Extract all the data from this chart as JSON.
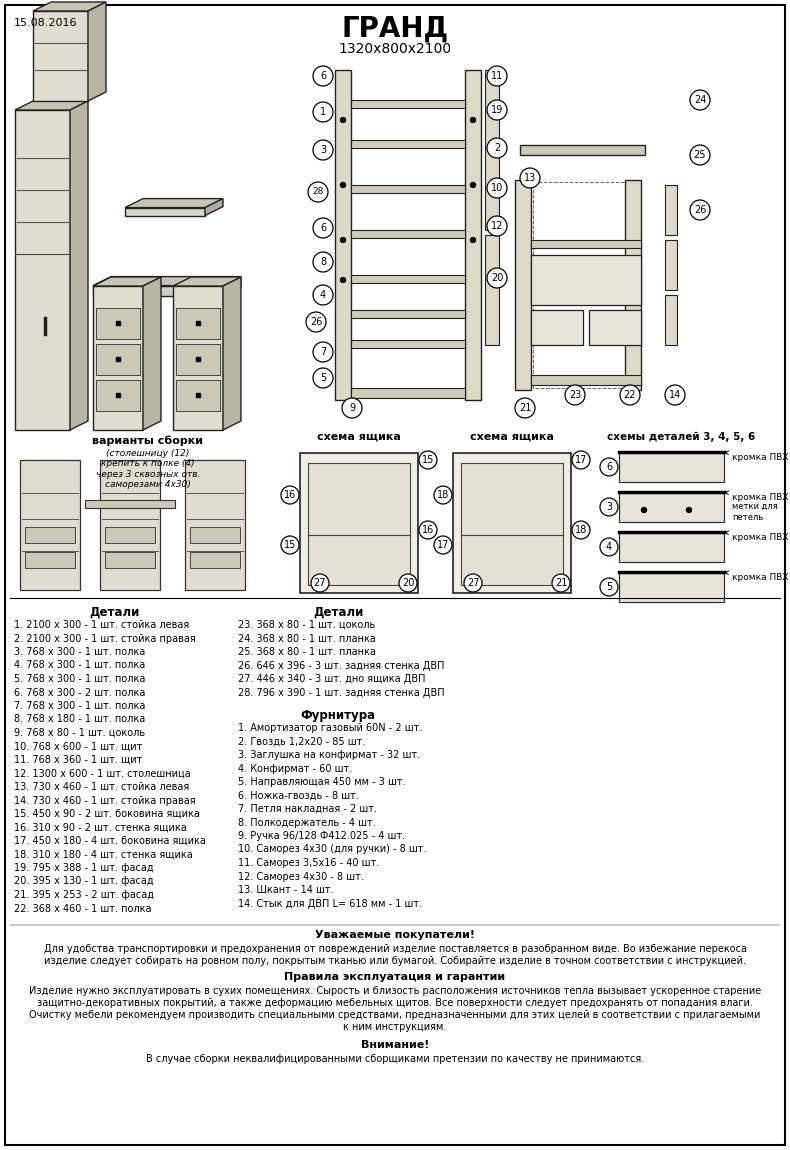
{
  "date": "15.08.2016",
  "title": "ГРАНД",
  "dimensions": "1320x800x2100",
  "bg_color": "#ffffff",
  "details_col1_header": "Детали",
  "details_col1": [
    "1. 2100 х 300 - 1 шт. стойка левая",
    "2. 2100 х 300 - 1 шт. стойка правая",
    "3. 768 х 300 - 1 шт. полка",
    "4. 768 х 300 - 1 шт. полка",
    "5. 768 х 300 - 1 шт. полка",
    "6. 768 х 300 - 2 шт. полка",
    "7. 768 х 300 - 1 шт. полка",
    "8. 768 х 180 - 1 шт. полка",
    "9. 768 х 80 - 1 шт. цоколь",
    "10. 768 х 600 - 1 шт. щит",
    "11. 768 х 360 - 1 шт. щит",
    "12. 1300 х 600 - 1 шт. столешница",
    "13. 730 х 460 - 1 шт. стойка левая",
    "14. 730 х 460 - 1 шт. стойка правая",
    "15. 450 х 90 - 2 шт. боковина ящика",
    "16. 310 х 90 - 2 шт. стенка ящика",
    "17. 450 х 180 - 4 шт. боковина ящика",
    "18. 310 х 180 - 4 шт. стенка ящика",
    "19. 795 х 388 - 1 шт. фасад",
    "20. 395 х 130 - 1 шт. фасад",
    "21. 395 х 253 - 2 шт. фасад",
    "22. 368 х 460 - 1 шт. полка"
  ],
  "details_col2_header": "Детали",
  "details_col2": [
    "23. 368 х 80 - 1 шт. цоколь",
    "24. 368 х 80 - 1 шт. планка",
    "25. 368 х 80 - 1 шт. планка",
    "26. 646 х 396 - 3 шт. задняя стенка ДВП",
    "27. 446 х 340 - 3 шт. дно ящика ДВП",
    "28. 796 х 390 - 1 шт. задняя стенка ДВП"
  ],
  "hardware_header": "Фурнитура",
  "hardware": [
    "1. Амортизатор газовый 60N - 2 шт.",
    "2. Гвоздь 1,2х20 - 85 шт.",
    "3. Заглушка на конфирмат - 32 шт.",
    "4. Конфирмат - 60 шт.",
    "5. Направляющая 450 мм - 3 шт.",
    "6. Ножка-гвоздь - 8 шт.",
    "7. Петля накладная - 2 шт.",
    "8. Полкодержатель - 4 шт.",
    "9. Ручка 96/128 Ф412.025 - 4 шт.",
    "10. Саморез 4х30 (для ручки) - 8 шт.",
    "11. Саморез 3,5х16 - 40 шт.",
    "12. Саморез 4х30 - 8 шт.",
    "13. Шкант - 14 шт.",
    "14. Стык для ДВП L= 618 мм - 1 шт."
  ],
  "assembly_variants_label": "варианты сборки",
  "assembly_note": "(столешницу (12)\nкрепить к полке (4)\nчерез 3 сквозных отв.\nсаморезами 4х30)",
  "schema_yashika_label": "схема ящика",
  "schema_detalei_label": "схемы деталей 3, 4, 5, 6",
  "kromka_pvh": "кромка ПВХ",
  "metki_dlya_petley": "метки для\nпетель",
  "dear_buyers_header": "Уважаемые покупатели!",
  "dear_buyers_text1": "Для удобства транспортировки и предохранения от повреждений изделие поставляется в разобранном виде. Во избежание перекоса",
  "dear_buyers_text2": "изделие следует собирать на ровном полу, покрытым тканью или бумагой. Собирайте изделие в точном соответствии с инструкцией.",
  "rules_header": "Правила эксплуатация и гарантии",
  "rules_text1": "Изделие нужно эксплуатировать в сухих помещениях. Сырость и близость расположения источников тепла вызывает ускоренное старение",
  "rules_text2": "защитно-декоративных покрытий, а также деформацию мебельных щитов. Все поверхности следует предохранять от попадания влаги.",
  "rules_text3": "Очистку мебели рекомендуем производить специальными средствами, предназначенными для этих целей в соответствии с прилагаемыми",
  "rules_text4": "к ним инструкциям.",
  "warning_header": "Внимание!",
  "warning_text": "В случае сборки неквалифицированными сборщиками претензии по качеству не принимаются."
}
